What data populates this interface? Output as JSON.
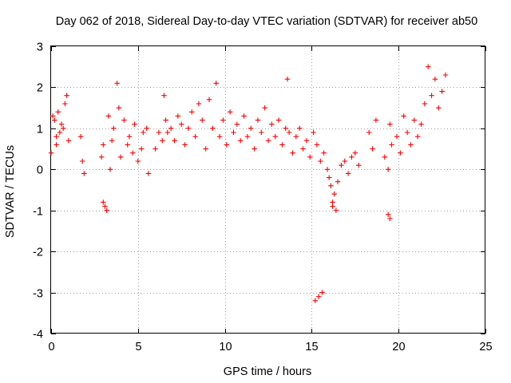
{
  "chart_data": {
    "type": "scatter",
    "title": "Day 062 of 2018, Sidereal Day-to-day VTEC variation (SDTVAR) for receiver ab50",
    "xlabel": "GPS time / hours",
    "ylabel": "SDTVAR / TECUs",
    "xlim": [
      0,
      25
    ],
    "ylim": [
      -4,
      3
    ],
    "xticks": [
      "0",
      "5",
      "10",
      "15",
      "20",
      "25"
    ],
    "yticks": [
      "-4",
      "-3",
      "-2",
      "-1",
      "0",
      "1",
      "2",
      "3"
    ],
    "grid": true,
    "marker": "+",
    "color": "#ff0000",
    "series": [
      {
        "name": "SDTVAR",
        "x": [
          0.0,
          0.1,
          0.2,
          0.3,
          0.4,
          0.5,
          0.6,
          0.8,
          0.9,
          1.0,
          1.7,
          1.8,
          1.9,
          2.9,
          3.0,
          3.1,
          3.3,
          3.4,
          3.5,
          3.6,
          3.8,
          3.9,
          4.0,
          4.2,
          4.4,
          4.5,
          4.7,
          4.8,
          5.0,
          5.2,
          5.3,
          5.5,
          5.6,
          6.0,
          6.2,
          6.4,
          6.5,
          6.6,
          6.7,
          6.9,
          7.1,
          7.3,
          7.5,
          7.7,
          7.9,
          8.1,
          8.3,
          8.5,
          8.7,
          8.9,
          9.1,
          9.3,
          9.5,
          9.7,
          9.9,
          10.1,
          10.3,
          10.5,
          10.7,
          10.9,
          11.1,
          11.3,
          11.5,
          11.7,
          11.9,
          12.1,
          12.3,
          12.5,
          12.7,
          12.9,
          13.1,
          13.3,
          13.5,
          13.7,
          13.9,
          14.1,
          14.3,
          14.5,
          14.7,
          14.9,
          15.1,
          15.3,
          15.5,
          15.7,
          15.9,
          16.0,
          16.1,
          16.2,
          16.3,
          16.5,
          16.7,
          16.9,
          17.1,
          17.3,
          17.5,
          17.7,
          18.3,
          18.5,
          18.7,
          19.2,
          19.4,
          19.5,
          19.6,
          19.9,
          20.1,
          20.3,
          20.5,
          20.7,
          20.9,
          21.1,
          21.3,
          21.5,
          21.7,
          21.9,
          22.1,
          22.3,
          22.5,
          22.7,
          15.2,
          15.4,
          15.6,
          19.4,
          19.5,
          16.2,
          16.4,
          3.0,
          3.2,
          13.6,
          0.3,
          0.7
        ],
        "y": [
          0.4,
          1.3,
          1.2,
          0.8,
          1.4,
          0.9,
          1.1,
          1.6,
          1.8,
          0.7,
          0.8,
          0.2,
          -0.1,
          0.3,
          0.6,
          -0.9,
          1.3,
          0.0,
          0.7,
          1.0,
          2.1,
          1.5,
          0.3,
          1.2,
          0.6,
          0.8,
          0.4,
          1.1,
          0.2,
          0.5,
          0.9,
          1.0,
          -0.1,
          0.5,
          0.9,
          0.7,
          1.8,
          1.2,
          0.9,
          1.0,
          0.7,
          1.3,
          1.1,
          0.6,
          1.0,
          1.4,
          0.8,
          1.6,
          1.2,
          0.5,
          1.7,
          1.0,
          2.1,
          0.8,
          1.2,
          0.6,
          1.4,
          0.9,
          1.1,
          0.7,
          1.3,
          0.8,
          1.0,
          0.5,
          1.2,
          0.9,
          1.5,
          0.7,
          1.1,
          0.8,
          1.2,
          0.6,
          1.0,
          0.9,
          0.4,
          0.8,
          1.0,
          0.5,
          0.7,
          0.3,
          0.9,
          0.6,
          0.2,
          0.4,
          0.0,
          -0.2,
          -0.4,
          -0.8,
          -0.6,
          -0.3,
          0.1,
          0.2,
          -0.1,
          0.3,
          0.4,
          0.1,
          0.9,
          0.5,
          1.2,
          0.3,
          0.0,
          1.1,
          0.6,
          0.8,
          0.4,
          1.3,
          0.9,
          0.6,
          1.2,
          0.8,
          1.1,
          1.6,
          2.5,
          1.8,
          2.2,
          1.5,
          1.9,
          2.3,
          -3.2,
          -3.1,
          -3.0,
          -1.1,
          -1.2,
          -0.9,
          -1.0,
          -0.8,
          -1.0,
          2.2,
          0.6,
          1.0
        ]
      }
    ]
  }
}
